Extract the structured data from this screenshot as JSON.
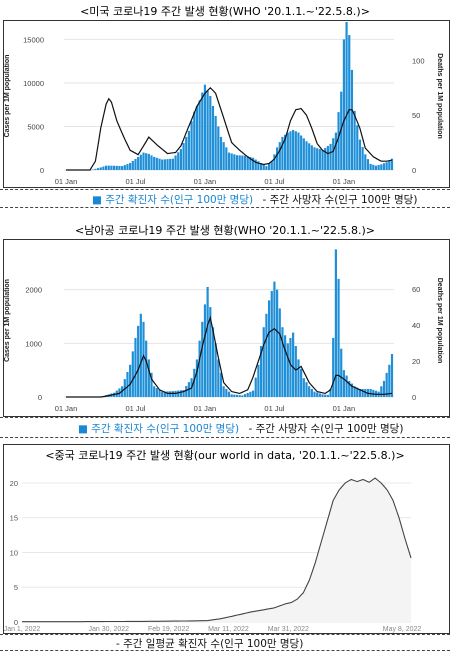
{
  "chart_data": [
    {
      "type": "bar",
      "title": "<미국 코로나19 주간 발생 현황(WHO '20.1.1.~'22.5.8.)>",
      "ylabel": "Cases per 1M population",
      "ylabel_right": "Deaths per 1M population",
      "ylim": [
        0,
        17000
      ],
      "ylim_right": [
        0,
        135
      ],
      "yticks": [
        "0",
        "5000",
        "10000",
        "15000"
      ],
      "yticks_values": [
        0,
        5000,
        10000,
        15000
      ],
      "yticks_right": [
        "0",
        "50",
        "100"
      ],
      "yticks_right_values": [
        0,
        50,
        100
      ],
      "xticks": [
        "01 Jan",
        "01 Jul",
        "01 Jan",
        "01 Jul",
        "01 Jan"
      ],
      "xticks_weeks": [
        0,
        26,
        52,
        78,
        104
      ],
      "n_weeks": 123,
      "legend": [
        "■ 주간 확진자 수(인구 100만 명당)",
        "- 주간 사망자 수(인구 100만 명당)"
      ],
      "series": [
        {
          "name": "주간 확진자 수(인구 100만 명당)",
          "keypoints": [
            [
              0,
              0
            ],
            [
              8,
              0
            ],
            [
              10,
              50
            ],
            [
              13,
              300
            ],
            [
              15,
              500
            ],
            [
              17,
              500
            ],
            [
              21,
              450
            ],
            [
              24,
              800
            ],
            [
              27,
              1500
            ],
            [
              29,
              2000
            ],
            [
              31,
              1850
            ],
            [
              33,
              1500
            ],
            [
              36,
              1200
            ],
            [
              40,
              1300
            ],
            [
              43,
              2400
            ],
            [
              46,
              4500
            ],
            [
              48,
              6700
            ],
            [
              50,
              8000
            ],
            [
              52,
              9800
            ],
            [
              54,
              8500
            ],
            [
              56,
              6200
            ],
            [
              58,
              3800
            ],
            [
              61,
              2000
            ],
            [
              64,
              1700
            ],
            [
              67,
              1650
            ],
            [
              70,
              1400
            ],
            [
              73,
              800
            ],
            [
              75,
              450
            ],
            [
              77,
              1000
            ],
            [
              79,
              2600
            ],
            [
              81,
              3800
            ],
            [
              83,
              4300
            ],
            [
              85,
              4600
            ],
            [
              87,
              4300
            ],
            [
              90,
              3300
            ],
            [
              93,
              2600
            ],
            [
              96,
              2300
            ],
            [
              99,
              3000
            ],
            [
              101,
              4300
            ],
            [
              103,
              9000
            ],
            [
              104,
              15000
            ],
            [
              105,
              17000
            ],
            [
              106,
              15500
            ],
            [
              107,
              11500
            ],
            [
              108,
              6800
            ],
            [
              110,
              3500
            ],
            [
              112,
              1800
            ],
            [
              114,
              700
            ],
            [
              116,
              500
            ],
            [
              118,
              650
            ],
            [
              120,
              900
            ],
            [
              122,
              1300
            ]
          ]
        },
        {
          "name": "주간 사망자 수(인구 100만 명당)",
          "keypoints": [
            [
              0,
              0
            ],
            [
              9,
              0
            ],
            [
              11,
              8
            ],
            [
              13,
              38
            ],
            [
              15,
              60
            ],
            [
              16,
              65
            ],
            [
              17,
              62
            ],
            [
              19,
              45
            ],
            [
              22,
              28
            ],
            [
              24,
              18
            ],
            [
              27,
              14
            ],
            [
              29,
              22
            ],
            [
              31,
              30
            ],
            [
              34,
              23
            ],
            [
              38,
              15
            ],
            [
              41,
              16
            ],
            [
              43,
              22
            ],
            [
              46,
              40
            ],
            [
              49,
              58
            ],
            [
              52,
              70
            ],
            [
              54,
              75
            ],
            [
              56,
              70
            ],
            [
              58,
              55
            ],
            [
              60,
              40
            ],
            [
              62,
              25
            ],
            [
              65,
              18
            ],
            [
              68,
              12
            ],
            [
              71,
              7
            ],
            [
              74,
              5
            ],
            [
              76,
              6
            ],
            [
              78,
              10
            ],
            [
              80,
              18
            ],
            [
              82,
              28
            ],
            [
              84,
              45
            ],
            [
              86,
              55
            ],
            [
              88,
              56
            ],
            [
              90,
              50
            ],
            [
              92,
              38
            ],
            [
              94,
              24
            ],
            [
              96,
              18
            ],
            [
              98,
              15
            ],
            [
              100,
              17
            ],
            [
              102,
              30
            ],
            [
              104,
              45
            ],
            [
              106,
              55
            ],
            [
              107,
              55
            ],
            [
              108,
              50
            ],
            [
              110,
              38
            ],
            [
              112,
              20
            ],
            [
              115,
              12
            ],
            [
              118,
              8
            ],
            [
              120,
              8
            ],
            [
              122,
              9
            ]
          ]
        }
      ]
    },
    {
      "type": "bar",
      "title": "<남아공 코로나19 주간 발생 현황(WHO '20.1.1.~'22.5.8.)>",
      "ylabel": "Cases per 1M population",
      "ylabel_right": "Deaths per 1M population",
      "ylim": [
        0,
        2850
      ],
      "ylim_right": [
        0,
        85
      ],
      "yticks": [
        "0",
        "1000",
        "2000"
      ],
      "yticks_values": [
        0,
        1000,
        2000
      ],
      "yticks_right": [
        "0",
        "20",
        "40",
        "60"
      ],
      "yticks_right_values": [
        0,
        20,
        40,
        60
      ],
      "xticks": [
        "01 Jan",
        "01 Jul",
        "01 Jan",
        "01 Jul",
        "01 Jan"
      ],
      "xticks_weeks": [
        0,
        26,
        52,
        78,
        104
      ],
      "n_weeks": 123,
      "legend": [
        "■ 주간 확진자 수(인구 100만 명당)",
        "- 주간 사망자 수(인구 100만 명당)"
      ],
      "series": [
        {
          "name": "주간 확진자 수(인구 100만 명당)",
          "keypoints": [
            [
              0,
              0
            ],
            [
              12,
              0
            ],
            [
              14,
              20
            ],
            [
              18,
              80
            ],
            [
              21,
              200
            ],
            [
              24,
              600
            ],
            [
              26,
              1100
            ],
            [
              28,
              1550
            ],
            [
              29,
              1400
            ],
            [
              31,
              700
            ],
            [
              33,
              200
            ],
            [
              36,
              100
            ],
            [
              40,
              110
            ],
            [
              44,
              130
            ],
            [
              47,
              350
            ],
            [
              49,
              700
            ],
            [
              51,
              1400
            ],
            [
              53,
              2050
            ],
            [
              55,
              1300
            ],
            [
              57,
              700
            ],
            [
              59,
              200
            ],
            [
              62,
              50
            ],
            [
              66,
              30
            ],
            [
              70,
              120
            ],
            [
              72,
              600
            ],
            [
              74,
              1300
            ],
            [
              76,
              1800
            ],
            [
              78,
              2150
            ],
            [
              79,
              2000
            ],
            [
              81,
              1300
            ],
            [
              83,
              1000
            ],
            [
              85,
              1200
            ],
            [
              87,
              700
            ],
            [
              89,
              350
            ],
            [
              91,
              200
            ],
            [
              93,
              100
            ],
            [
              96,
              50
            ],
            [
              98,
              40
            ],
            [
              99,
              150
            ],
            [
              100,
              1100
            ],
            [
              101,
              2750
            ],
            [
              102,
              2200
            ],
            [
              103,
              900
            ],
            [
              104,
              500
            ],
            [
              106,
              300
            ],
            [
              108,
              200
            ],
            [
              110,
              150
            ],
            [
              114,
              150
            ],
            [
              117,
              100
            ],
            [
              119,
              300
            ],
            [
              121,
              600
            ],
            [
              122,
              800
            ]
          ]
        },
        {
          "name": "주간 사망자 수(인구 100만 명당)",
          "keypoints": [
            [
              0,
              0
            ],
            [
              13,
              0
            ],
            [
              15,
              0.5
            ],
            [
              20,
              2
            ],
            [
              24,
              7
            ],
            [
              27,
              15
            ],
            [
              29,
              23
            ],
            [
              30,
              20
            ],
            [
              32,
              10
            ],
            [
              35,
              4
            ],
            [
              38,
              2
            ],
            [
              41,
              2
            ],
            [
              44,
              3
            ],
            [
              47,
              5
            ],
            [
              49,
              14
            ],
            [
              51,
              28
            ],
            [
              53,
              40
            ],
            [
              54,
              44
            ],
            [
              55,
              37
            ],
            [
              57,
              22
            ],
            [
              59,
              8
            ],
            [
              62,
              3
            ],
            [
              65,
              2
            ],
            [
              68,
              4
            ],
            [
              70,
              11
            ],
            [
              72,
              20
            ],
            [
              74,
              29
            ],
            [
              76,
              36
            ],
            [
              78,
              38
            ],
            [
              80,
              35
            ],
            [
              82,
              26
            ],
            [
              84,
              18
            ],
            [
              86,
              15
            ],
            [
              88,
              17
            ],
            [
              89,
              14
            ],
            [
              91,
              8
            ],
            [
              94,
              3
            ],
            [
              97,
              2
            ],
            [
              99,
              4
            ],
            [
              100,
              8
            ],
            [
              101,
              12
            ],
            [
              102,
              12
            ],
            [
              104,
              10
            ],
            [
              107,
              6
            ],
            [
              110,
              4
            ],
            [
              113,
              2
            ],
            [
              116,
              1.5
            ],
            [
              119,
              1.5
            ],
            [
              122,
              2
            ]
          ]
        }
      ]
    },
    {
      "type": "area",
      "title": "<중국 코로나19 주간 발생 현황(our world in data, '20.1.1.~'22.5.8.)>",
      "ylim": [
        0,
        21
      ],
      "yticks": [
        "0",
        "5",
        "10",
        "15",
        "20"
      ],
      "yticks_values": [
        0,
        5,
        10,
        15,
        20
      ],
      "xticks": [
        "Jan 1, 2022",
        "Jan 30, 2022",
        "Feb 19, 2022",
        "Mar 11, 2022",
        "Mar 31, 2022",
        "May 8, 2022"
      ],
      "xticks_days": [
        0,
        29,
        49,
        69,
        89,
        127
      ],
      "n_days": 130,
      "legend": [
        "- 주간 일평균 확진자 수(인구 100만 명당)"
      ],
      "series": [
        {
          "name": "주간 일평균 확진자 수(인구 100만 명당)",
          "keypoints": [
            [
              0,
              0.05
            ],
            [
              20,
              0.05
            ],
            [
              45,
              0.1
            ],
            [
              55,
              0.15
            ],
            [
              62,
              0.2
            ],
            [
              66,
              0.45
            ],
            [
              70,
              0.8
            ],
            [
              73,
              1.1
            ],
            [
              76,
              1.4
            ],
            [
              80,
              1.7
            ],
            [
              84,
              2.0
            ],
            [
              86,
              2.3
            ],
            [
              88,
              2.6
            ],
            [
              90,
              2.8
            ],
            [
              92,
              3.3
            ],
            [
              94,
              4.2
            ],
            [
              96,
              6.0
            ],
            [
              98,
              8.5
            ],
            [
              100,
              11.5
            ],
            [
              102,
              14.5
            ],
            [
              104,
              17.5
            ],
            [
              106,
              19.0
            ],
            [
              108,
              20.0
            ],
            [
              110,
              20.5
            ],
            [
              112,
              20.2
            ],
            [
              114,
              20.5
            ],
            [
              116,
              20.1
            ],
            [
              118,
              20.7
            ],
            [
              120,
              20.0
            ],
            [
              122,
              19.0
            ],
            [
              124,
              17.5
            ],
            [
              126,
              15.0
            ],
            [
              128,
              12.0
            ],
            [
              130,
              9.2
            ]
          ]
        }
      ]
    }
  ]
}
